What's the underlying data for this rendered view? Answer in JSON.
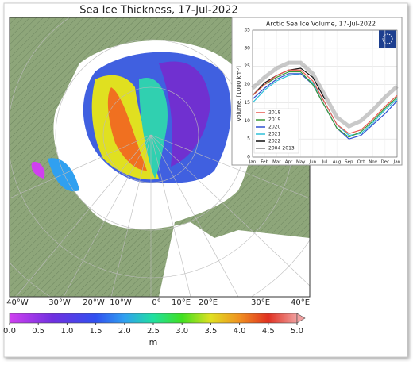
{
  "map": {
    "title": "Sea Ice Thickness, 17-Jul-2022",
    "longitude_labels": [
      "40°W",
      "30°W",
      "20°W",
      "10°W",
      "0°",
      "10°E",
      "20°E",
      "30°E",
      "40°E"
    ],
    "colorbar": {
      "label": "m",
      "xlim": [
        0,
        5
      ],
      "xticks": [
        {
          "value": 0,
          "label": "0.0"
        },
        0.5,
        {
          "value": 1,
          "label": "1.0"
        },
        1.5,
        {
          "value": 2,
          "label": "2.0"
        },
        2.5,
        {
          "value": 3,
          "label": "3.0"
        },
        3.5,
        {
          "value": 4,
          "label": "4.0"
        },
        4.5,
        {
          "value": 5,
          "label": "5.0"
        }
      ]
    }
  },
  "chart_data": {
    "type": "line",
    "title": "Arctic Sea Ice Volume, 17-Jul-2022",
    "ylabel": "Volume, [1000 km³]",
    "categories": [
      "Jan",
      "Feb",
      "Mar",
      "Apr",
      "May",
      "Jun",
      "Jul",
      "Aug",
      "Sep",
      "Oct",
      "Nov",
      "Dec",
      "Jan"
    ],
    "ylim": [
      0,
      35
    ],
    "yticks": [
      0,
      5,
      10,
      15,
      20,
      25,
      30,
      35
    ],
    "grid": true,
    "legend": "lower left",
    "series": [
      {
        "name": "2018",
        "color": "#e8584f",
        "values": [
          17,
          20,
          22.5,
          24,
          24,
          21,
          15,
          9,
          6.5,
          7.5,
          10.5,
          14,
          17
        ]
      },
      {
        "name": "2019",
        "color": "#3a9a3a",
        "values": [
          17,
          20,
          22,
          23.5,
          23.5,
          20,
          14,
          8,
          5.5,
          7,
          10,
          13.5,
          16.5
        ]
      },
      {
        "name": "2020",
        "color": "#3050d0",
        "values": [
          16,
          19,
          21.5,
          23,
          23,
          20,
          14,
          8,
          5,
          6,
          9,
          12,
          15.5
        ]
      },
      {
        "name": "2021",
        "color": "#30c0d8",
        "values": [
          15,
          18.5,
          21,
          22.5,
          23,
          20.5,
          15,
          9,
          6,
          6.5,
          9.5,
          13,
          16
        ]
      },
      {
        "name": "2022",
        "color": "#111111",
        "values": [
          17,
          20.5,
          22.5,
          24,
          24.5,
          22,
          16,
          null,
          null,
          null,
          null,
          null,
          null
        ]
      },
      {
        "name": "2004-2013",
        "color": "#888888",
        "values": [
          19,
          22,
          24.5,
          26,
          26,
          23,
          17,
          11,
          8.5,
          10,
          13,
          16.5,
          19.5
        ]
      }
    ]
  }
}
